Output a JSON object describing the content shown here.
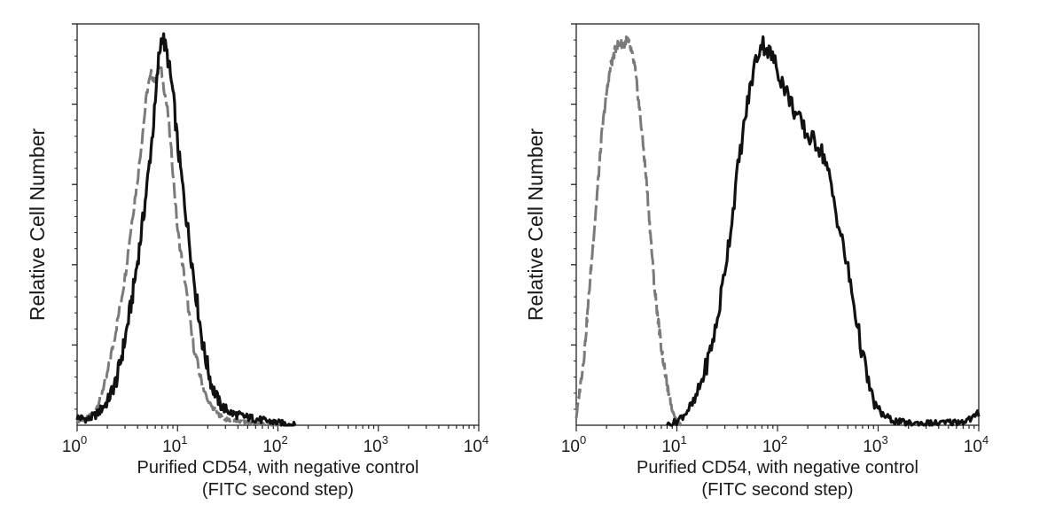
{
  "chart_data": [
    {
      "type": "line",
      "panel": "left",
      "xscale": "log",
      "xlim": [
        1,
        10000
      ],
      "ylim": [
        0,
        100
      ],
      "xlabel": [
        "Purified CD54, with negative control",
        "(FITC second step)"
      ],
      "ylabel": "Relative Cell Number",
      "xticks": [
        {
          "base": "10",
          "exp": "0"
        },
        {
          "base": "10",
          "exp": "1"
        },
        {
          "base": "10",
          "exp": "2"
        },
        {
          "base": "10",
          "exp": "3"
        },
        {
          "base": "10",
          "exp": "4"
        }
      ],
      "grid": false,
      "series": [
        {
          "color": "#7a7a7a",
          "dash": true,
          "x": [
            1,
            1.3,
            1.6,
            2,
            2.5,
            3,
            3.5,
            4,
            4.5,
            5,
            5.5,
            6,
            6.5,
            7,
            8,
            9,
            10,
            12,
            14,
            17,
            20,
            25,
            30,
            40,
            60,
            100
          ],
          "y": [
            1,
            2,
            5,
            13,
            26,
            38,
            52,
            63,
            75,
            86,
            90,
            88,
            92,
            90,
            80,
            65,
            50,
            36,
            22,
            12,
            6,
            3,
            1.5,
            1,
            0.5,
            0
          ]
        },
        {
          "color": "#111111",
          "dash": false,
          "x": [
            1,
            1.3,
            1.6,
            2,
            2.5,
            3,
            3.5,
            4,
            4.5,
            5,
            5.5,
            6,
            6.5,
            7,
            7.5,
            8,
            9,
            10,
            12,
            15,
            18,
            22,
            27,
            35,
            50,
            80,
            150
          ],
          "y": [
            2,
            1.5,
            3,
            6,
            12,
            22,
            32,
            42,
            52,
            62,
            72,
            82,
            94,
            100,
            97,
            94,
            85,
            72,
            55,
            35,
            20,
            10,
            5,
            3,
            2,
            1,
            0
          ]
        }
      ]
    },
    {
      "type": "line",
      "panel": "right",
      "xscale": "log",
      "xlim": [
        1,
        10000
      ],
      "ylim": [
        0,
        100
      ],
      "xlabel": [
        "Purified CD54, with negative control",
        "(FITC second step)"
      ],
      "ylabel": "Relative Cell Number",
      "xticks": [
        {
          "base": "10",
          "exp": "0"
        },
        {
          "base": "10",
          "exp": "1"
        },
        {
          "base": "10",
          "exp": "2"
        },
        {
          "base": "10",
          "exp": "3"
        },
        {
          "base": "10",
          "exp": "4"
        }
      ],
      "grid": false,
      "series": [
        {
          "color": "#7a7a7a",
          "dash": true,
          "x": [
            1,
            1.2,
            1.4,
            1.6,
            1.8,
            2,
            2.2,
            2.5,
            2.8,
            3,
            3.2,
            3.5,
            3.8,
            4,
            4.5,
            5,
            5.5,
            6,
            7,
            8,
            9,
            10,
            11
          ],
          "y": [
            2,
            18,
            40,
            58,
            75,
            85,
            92,
            97,
            98,
            97,
            99,
            96,
            92,
            87,
            75,
            62,
            48,
            35,
            20,
            10,
            4,
            1,
            0
          ]
        },
        {
          "color": "#111111",
          "dash": false,
          "x": [
            8,
            10,
            12,
            15,
            18,
            20,
            25,
            30,
            35,
            40,
            50,
            60,
            70,
            80,
            90,
            100,
            120,
            150,
            200,
            250,
            300,
            400,
            500,
            600,
            700,
            800,
            900,
            1000,
            1200,
            1500,
            2000,
            4000,
            7000,
            9000,
            10000
          ],
          "y": [
            0,
            1,
            3,
            6,
            12,
            16,
            26,
            40,
            52,
            65,
            82,
            93,
            98,
            96,
            94,
            91,
            86,
            80,
            74,
            72,
            68,
            52,
            40,
            28,
            18,
            11,
            6,
            4,
            2,
            1,
            0.5,
            0.5,
            1,
            2,
            3
          ]
        }
      ]
    }
  ]
}
